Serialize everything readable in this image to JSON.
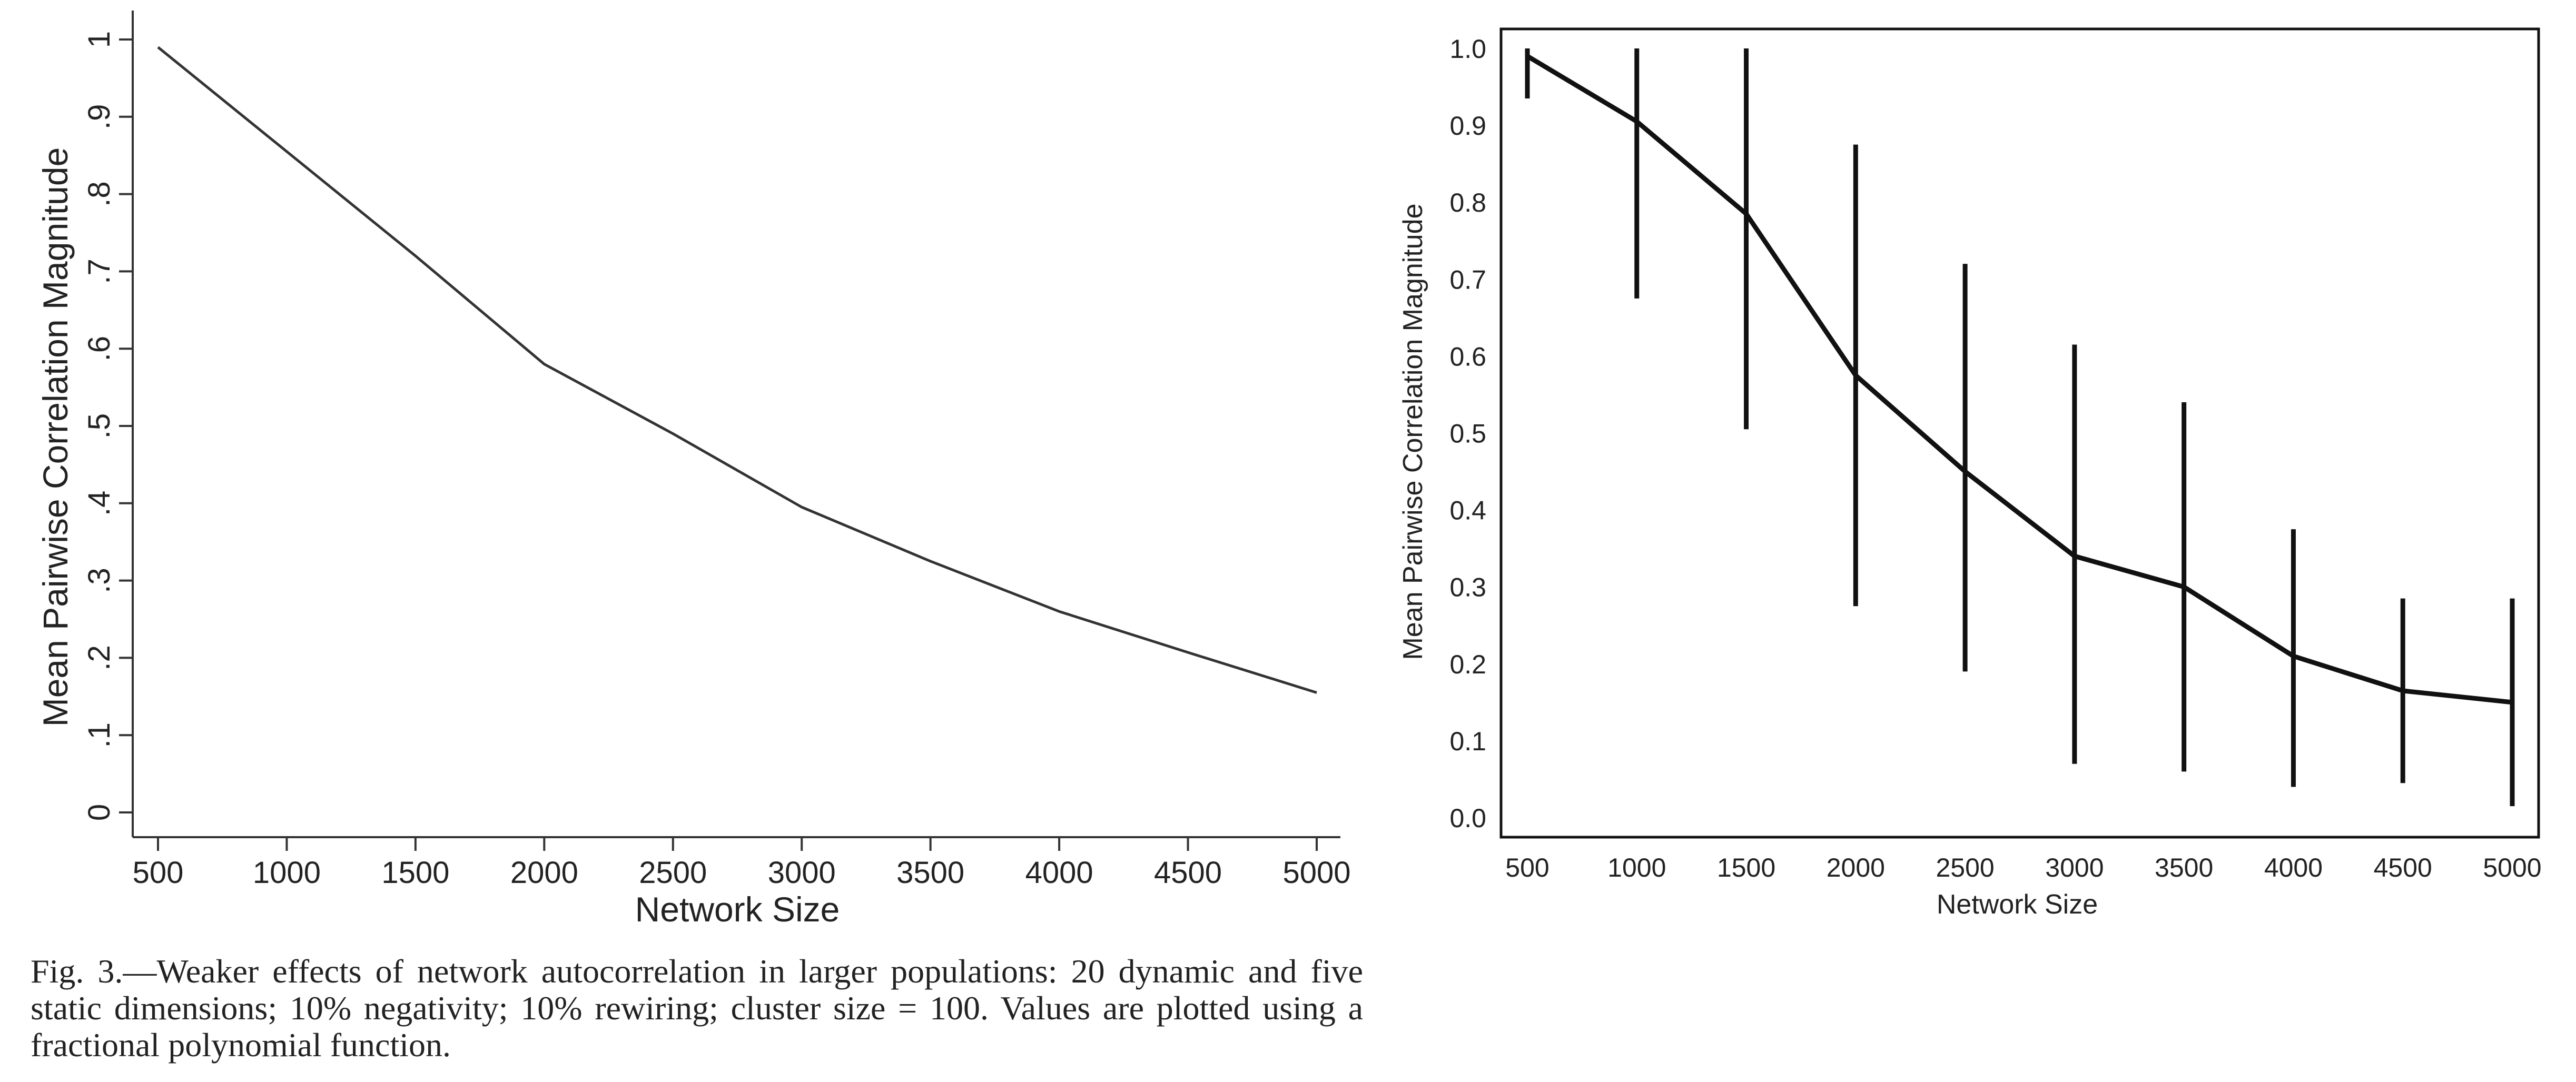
{
  "caption": "Fig. 3.—Weaker effects of network autocorrelation in larger populations: 20 dynamic and five static dimensions; 10% negativity; 10% rewiring; cluster size = 100. Values are plotted using a fractional polynomial function.",
  "colors": {
    "line": "#333333",
    "axis": "#333333",
    "frame": "#111111"
  },
  "chart_data": [
    {
      "type": "line",
      "xlabel": "Network Size",
      "ylabel": "Mean Pairwise Correlation Magnitude",
      "x_ticks": [
        "500",
        "1000",
        "1500",
        "2000",
        "2500",
        "3000",
        "3500",
        "4000",
        "4500",
        "5000"
      ],
      "y_ticks": [
        "0",
        ".1",
        ".2",
        ".3",
        ".4",
        ".5",
        ".6",
        ".7",
        ".8",
        ".9",
        "1"
      ],
      "xlim": [
        500,
        5000
      ],
      "ylim": [
        0,
        1
      ],
      "grid": false,
      "x": [
        500,
        1000,
        1500,
        2000,
        2500,
        3000,
        3500,
        4000,
        4500,
        5000
      ],
      "y": [
        0.99,
        0.855,
        0.72,
        0.58,
        0.49,
        0.395,
        0.325,
        0.26,
        0.207,
        0.155
      ]
    },
    {
      "type": "line",
      "xlabel": "Network Size",
      "ylabel": "Mean Pairwise Correlation Magnitude",
      "x_ticks": [
        "500",
        "1000",
        "1500",
        "2000",
        "2500",
        "3000",
        "3500",
        "4000",
        "4500",
        "5000"
      ],
      "y_ticks": [
        "0.0",
        "0.1",
        "0.2",
        "0.3",
        "0.4",
        "0.5",
        "0.6",
        "0.7",
        "0.8",
        "0.9",
        "1.0"
      ],
      "xlim": [
        500,
        5000
      ],
      "ylim": [
        0,
        1
      ],
      "grid": false,
      "x": [
        500,
        1000,
        1500,
        2000,
        2500,
        3000,
        3500,
        4000,
        4500,
        5000
      ],
      "y": [
        0.99,
        0.905,
        0.785,
        0.575,
        0.45,
        0.34,
        0.3,
        0.21,
        0.165,
        0.15
      ],
      "y_lower": [
        0.935,
        0.675,
        0.505,
        0.275,
        0.19,
        0.07,
        0.06,
        0.04,
        0.045,
        0.015
      ],
      "y_upper": [
        1.0,
        1.0,
        1.0,
        0.875,
        0.72,
        0.615,
        0.54,
        0.375,
        0.285,
        0.285
      ]
    }
  ]
}
